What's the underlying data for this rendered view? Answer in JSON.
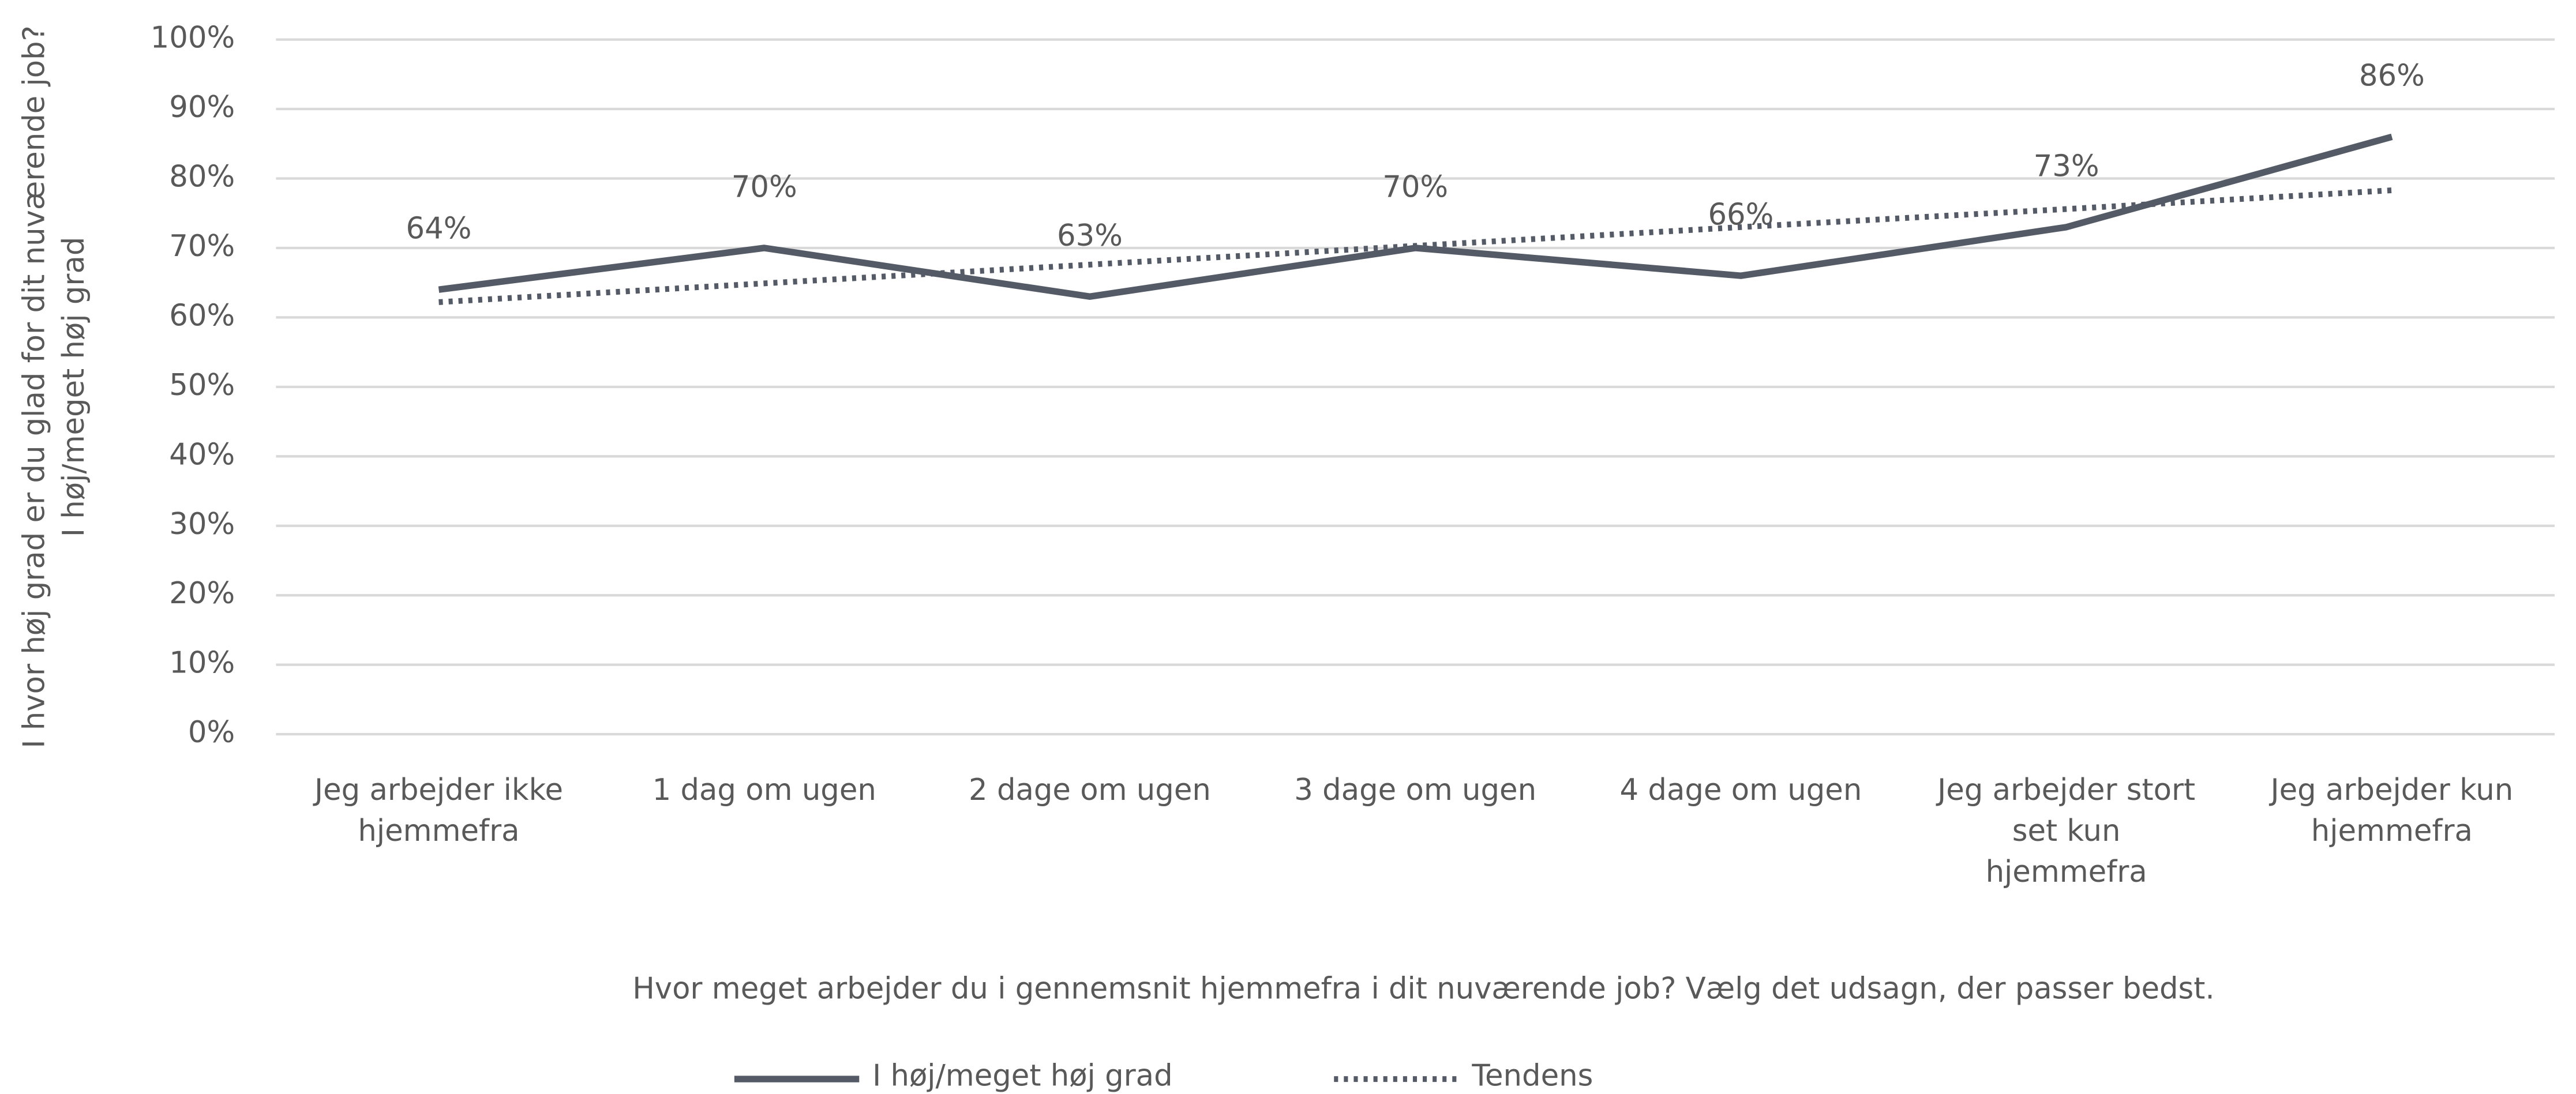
{
  "chart_data": {
    "type": "line",
    "y_axis_label": [
      "I hvor høj grad er du glad for dit nuværende job?",
      "I høj/meget høj grad"
    ],
    "x_axis_label": "Hvor meget arbejder du i gennemsnit hjemmefra i dit nuværende job? Vælg det udsagn, der passer bedst.",
    "categories": [
      [
        "Jeg arbejder ikke",
        "hjemmefra"
      ],
      [
        "1 dag om ugen"
      ],
      [
        "2 dage om ugen"
      ],
      [
        "3 dage om ugen"
      ],
      [
        "4 dage om ugen"
      ],
      [
        "Jeg arbejder stort",
        "set kun",
        "hjemmefra"
      ],
      [
        "Jeg arbejder kun",
        "hjemmefra"
      ]
    ],
    "series": [
      {
        "name": "I høj/meget høj grad",
        "color": "#545b66",
        "dash": "solid",
        "values": [
          64,
          70,
          63,
          70,
          66,
          73,
          86
        ],
        "value_labels": [
          "64%",
          "70%",
          "63%",
          "70%",
          "66%",
          "73%",
          "86%"
        ]
      },
      {
        "name": "Tendens",
        "color": "#545b66",
        "dash": "dotted",
        "values": [
          62.2,
          64.9,
          67.6,
          70.3,
          73.0,
          75.6,
          78.3
        ]
      }
    ],
    "ylim": [
      0,
      100
    ],
    "yticks": [
      {
        "value": 0,
        "label": "0%"
      },
      {
        "value": 10,
        "label": "10%"
      },
      {
        "value": 20,
        "label": "20%"
      },
      {
        "value": 30,
        "label": "30%"
      },
      {
        "value": 40,
        "label": "40%"
      },
      {
        "value": 50,
        "label": "50%"
      },
      {
        "value": 60,
        "label": "60%"
      },
      {
        "value": 70,
        "label": "70%"
      },
      {
        "value": 80,
        "label": "80%"
      },
      {
        "value": 90,
        "label": "90%"
      },
      {
        "value": 100,
        "label": "100%"
      }
    ],
    "grid": true,
    "legend": "bottom"
  }
}
